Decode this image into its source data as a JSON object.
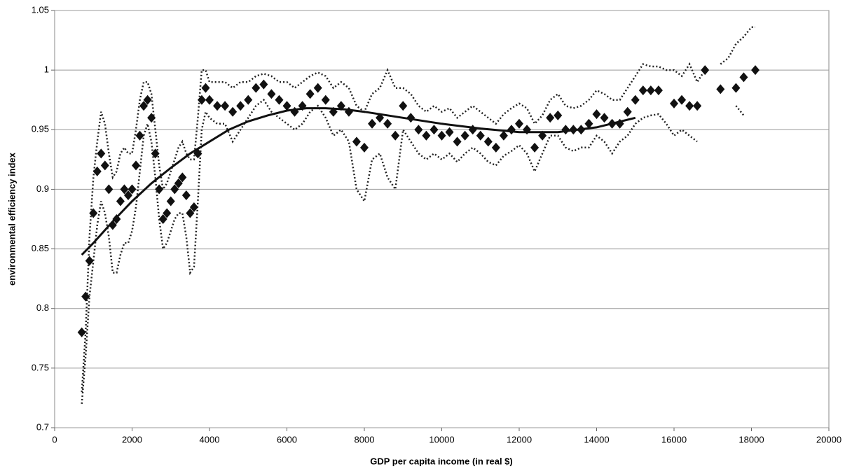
{
  "chart_data": {
    "type": "scatter",
    "xlabel": "GDP per capita income (in real $)",
    "ylabel": "environmental efficiency index",
    "xlim": [
      0,
      20000
    ],
    "xticks": [
      0,
      2000,
      4000,
      6000,
      8000,
      10000,
      12000,
      14000,
      16000,
      18000,
      20000
    ],
    "ylim": [
      0.7,
      1.05
    ],
    "yticks": [
      0.7,
      0.75,
      0.8,
      0.85,
      0.9,
      0.95,
      1,
      1.05
    ],
    "grid": true,
    "x": [
      700,
      800,
      900,
      1000,
      1100,
      1200,
      1300,
      1400,
      1500,
      1600,
      1700,
      1800,
      1900,
      2000,
      2100,
      2200,
      2300,
      2400,
      2500,
      2600,
      2700,
      2800,
      2900,
      3000,
      3100,
      3200,
      3300,
      3400,
      3500,
      3600,
      3700,
      3800,
      3900,
      4000,
      4200,
      4400,
      4600,
      4800,
      5000,
      5200,
      5400,
      5600,
      5800,
      6000,
      6200,
      6400,
      6600,
      6800,
      7000,
      7200,
      7400,
      7600,
      7800,
      8000,
      8200,
      8400,
      8600,
      8800,
      9000,
      9200,
      9400,
      9600,
      9800,
      10000,
      10200,
      10400,
      10600,
      10800,
      11000,
      11200,
      11400,
      11600,
      11800,
      12000,
      12200,
      12400,
      12600,
      12800,
      13000,
      13200,
      13400,
      13600,
      13800,
      14000,
      14200,
      14400,
      14600,
      14800,
      15000,
      15200,
      15400,
      15600,
      15800,
      16000,
      16200,
      16400,
      16600,
      16800,
      17000,
      17200,
      17400,
      17600,
      17800,
      18000,
      18100
    ],
    "series": [
      {
        "marker": "diamond",
        "color": "#111111",
        "values": [
          0.78,
          0.81,
          0.84,
          0.88,
          0.915,
          0.93,
          0.92,
          0.9,
          0.87,
          0.875,
          0.89,
          0.9,
          0.895,
          0.9,
          0.92,
          0.945,
          0.97,
          0.975,
          0.96,
          0.93,
          0.9,
          0.875,
          0.88,
          0.89,
          0.9,
          0.905,
          0.91,
          0.895,
          0.88,
          0.885,
          0.93,
          0.975,
          0.985,
          0.975,
          0.97,
          0.97,
          0.965,
          0.97,
          0.975,
          0.985,
          0.988,
          0.98,
          0.975,
          0.97,
          0.965,
          0.97,
          0.98,
          0.985,
          0.975,
          0.965,
          0.97,
          0.965,
          0.94,
          0.935,
          0.955,
          0.96,
          0.955,
          0.945,
          0.97,
          0.96,
          0.95,
          0.945,
          0.95,
          0.945,
          0.948,
          0.94,
          0.945,
          0.95,
          0.945,
          0.94,
          0.935,
          0.945,
          0.95,
          0.955,
          0.95,
          0.935,
          0.945,
          0.96,
          0.962,
          0.95,
          0.95,
          0.95,
          0.955,
          0.963,
          0.96,
          0.955,
          0.955,
          0.965,
          0.975,
          0.983,
          0.983,
          0.983,
          null,
          0.972,
          0.975,
          0.97,
          0.97,
          1.0,
          null,
          0.984,
          null,
          0.985,
          0.994,
          null,
          1.0
        ]
      },
      {
        "marker": "dotted",
        "color": "#222222",
        "values": [
          0.73,
          0.78,
          0.86,
          0.91,
          0.94,
          0.965,
          0.955,
          0.93,
          0.91,
          0.915,
          0.93,
          0.935,
          0.93,
          0.93,
          0.95,
          0.975,
          0.99,
          0.99,
          0.98,
          0.95,
          0.92,
          0.9,
          0.905,
          0.915,
          0.925,
          0.935,
          0.94,
          0.93,
          0.925,
          0.925,
          0.96,
          1.0,
          1.0,
          0.99,
          0.99,
          0.99,
          0.985,
          0.99,
          0.99,
          0.995,
          0.997,
          0.995,
          0.99,
          0.99,
          0.985,
          0.99,
          0.995,
          0.998,
          0.995,
          0.985,
          0.99,
          0.985,
          0.97,
          0.965,
          0.98,
          0.985,
          1.0,
          0.985,
          0.985,
          0.98,
          0.97,
          0.965,
          0.97,
          0.965,
          0.968,
          0.96,
          0.965,
          0.97,
          0.965,
          0.96,
          0.955,
          0.963,
          0.968,
          0.972,
          0.968,
          0.955,
          0.962,
          0.975,
          0.98,
          0.97,
          0.968,
          0.97,
          0.975,
          0.983,
          0.98,
          0.975,
          0.975,
          0.985,
          0.995,
          1.005,
          1.003,
          1.003,
          1.0,
          1.0,
          0.995,
          1.005,
          0.99,
          1.0,
          null,
          1.005,
          1.01,
          1.022,
          1.028,
          1.036,
          1.036
        ]
      },
      {
        "marker": "dotted",
        "color": "#222222",
        "values": [
          0.72,
          0.76,
          0.81,
          0.84,
          0.87,
          0.89,
          0.88,
          0.86,
          0.83,
          0.83,
          0.845,
          0.855,
          0.855,
          0.865,
          0.885,
          0.915,
          0.945,
          0.955,
          0.94,
          0.91,
          0.875,
          0.85,
          0.855,
          0.865,
          0.875,
          0.88,
          0.88,
          0.86,
          0.83,
          0.835,
          0.89,
          0.95,
          0.965,
          0.96,
          0.955,
          0.955,
          0.94,
          0.95,
          0.96,
          0.97,
          0.975,
          0.965,
          0.96,
          0.955,
          0.95,
          0.955,
          0.965,
          0.97,
          0.96,
          0.945,
          0.95,
          0.94,
          0.9,
          0.89,
          0.925,
          0.93,
          0.91,
          0.9,
          0.95,
          0.94,
          0.93,
          0.925,
          0.93,
          0.925,
          0.93,
          0.923,
          0.93,
          0.935,
          0.93,
          0.923,
          0.92,
          0.928,
          0.932,
          0.937,
          0.93,
          0.915,
          0.93,
          0.945,
          0.945,
          0.935,
          0.932,
          0.935,
          0.935,
          0.945,
          0.94,
          0.93,
          0.94,
          0.945,
          0.955,
          0.96,
          0.962,
          0.963,
          0.955,
          0.945,
          0.95,
          0.945,
          0.94,
          null,
          null,
          null,
          null,
          0.97,
          0.962,
          null,
          null
        ]
      },
      {
        "marker": "line",
        "color": "#111111",
        "x": [
          700,
          1000,
          1500,
          2000,
          2500,
          3000,
          3500,
          4000,
          4500,
          5000,
          5500,
          6000,
          6500,
          7000,
          7500,
          8000,
          9000,
          10000,
          11000,
          12000,
          13000,
          14000,
          15000
        ],
        "values": [
          0.845,
          0.855,
          0.873,
          0.89,
          0.905,
          0.918,
          0.93,
          0.94,
          0.95,
          0.957,
          0.962,
          0.966,
          0.968,
          0.968,
          0.967,
          0.965,
          0.96,
          0.955,
          0.951,
          0.948,
          0.948,
          0.952,
          0.96
        ]
      }
    ]
  }
}
